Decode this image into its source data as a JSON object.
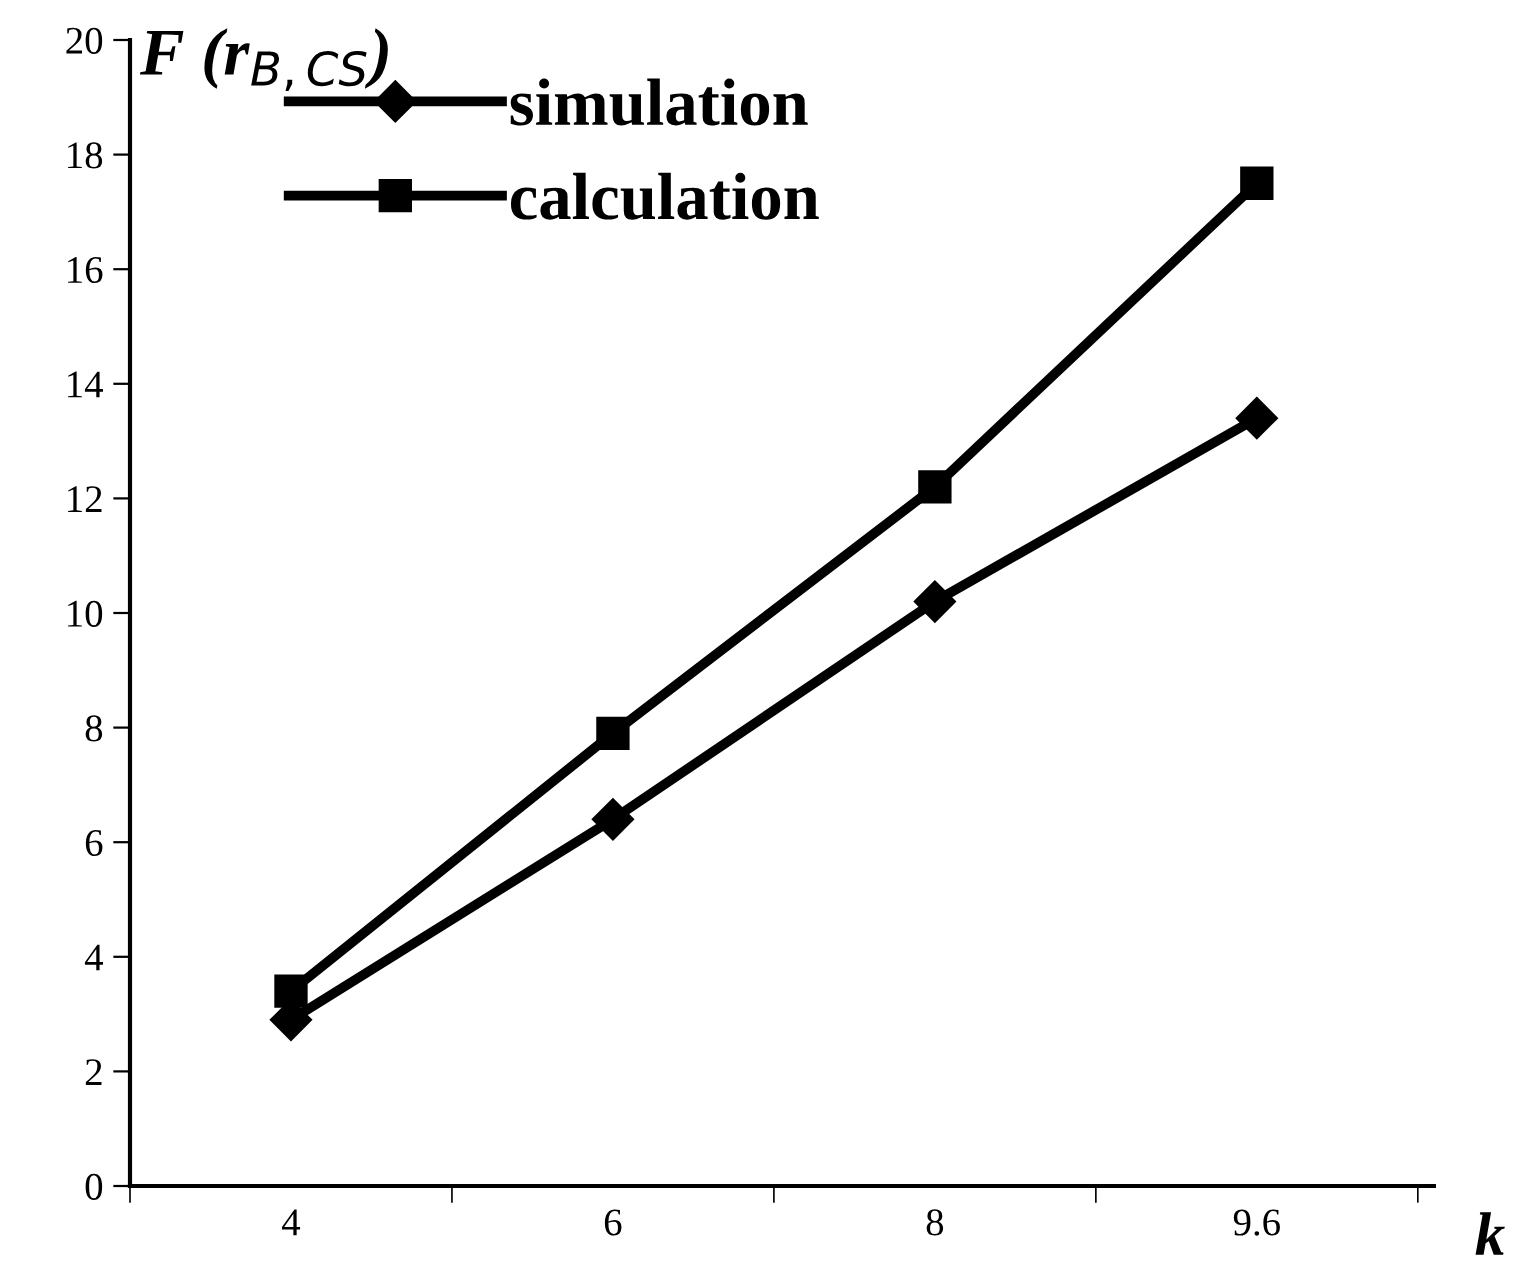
{
  "chart_data": {
    "type": "line",
    "ylabel": "F (r$_{B,CS}$)",
    "xlabel": "k",
    "categories": [
      "4",
      "6",
      "8",
      "9.6"
    ],
    "series": [
      {
        "name": "simulation",
        "color": "#000000",
        "marker": "diamond",
        "values": [
          2.9,
          6.4,
          10.2,
          13.4
        ]
      },
      {
        "name": "calculation",
        "color": "#000000",
        "marker": "square",
        "values": [
          3.4,
          7.9,
          12.2,
          17.5
        ]
      }
    ],
    "ylim": [
      0,
      20
    ],
    "yticks": [
      0,
      2,
      4,
      6,
      8,
      10,
      12,
      14,
      16,
      18,
      20
    ],
    "grid": false,
    "legend": "top left",
    "line_style": "solid"
  }
}
